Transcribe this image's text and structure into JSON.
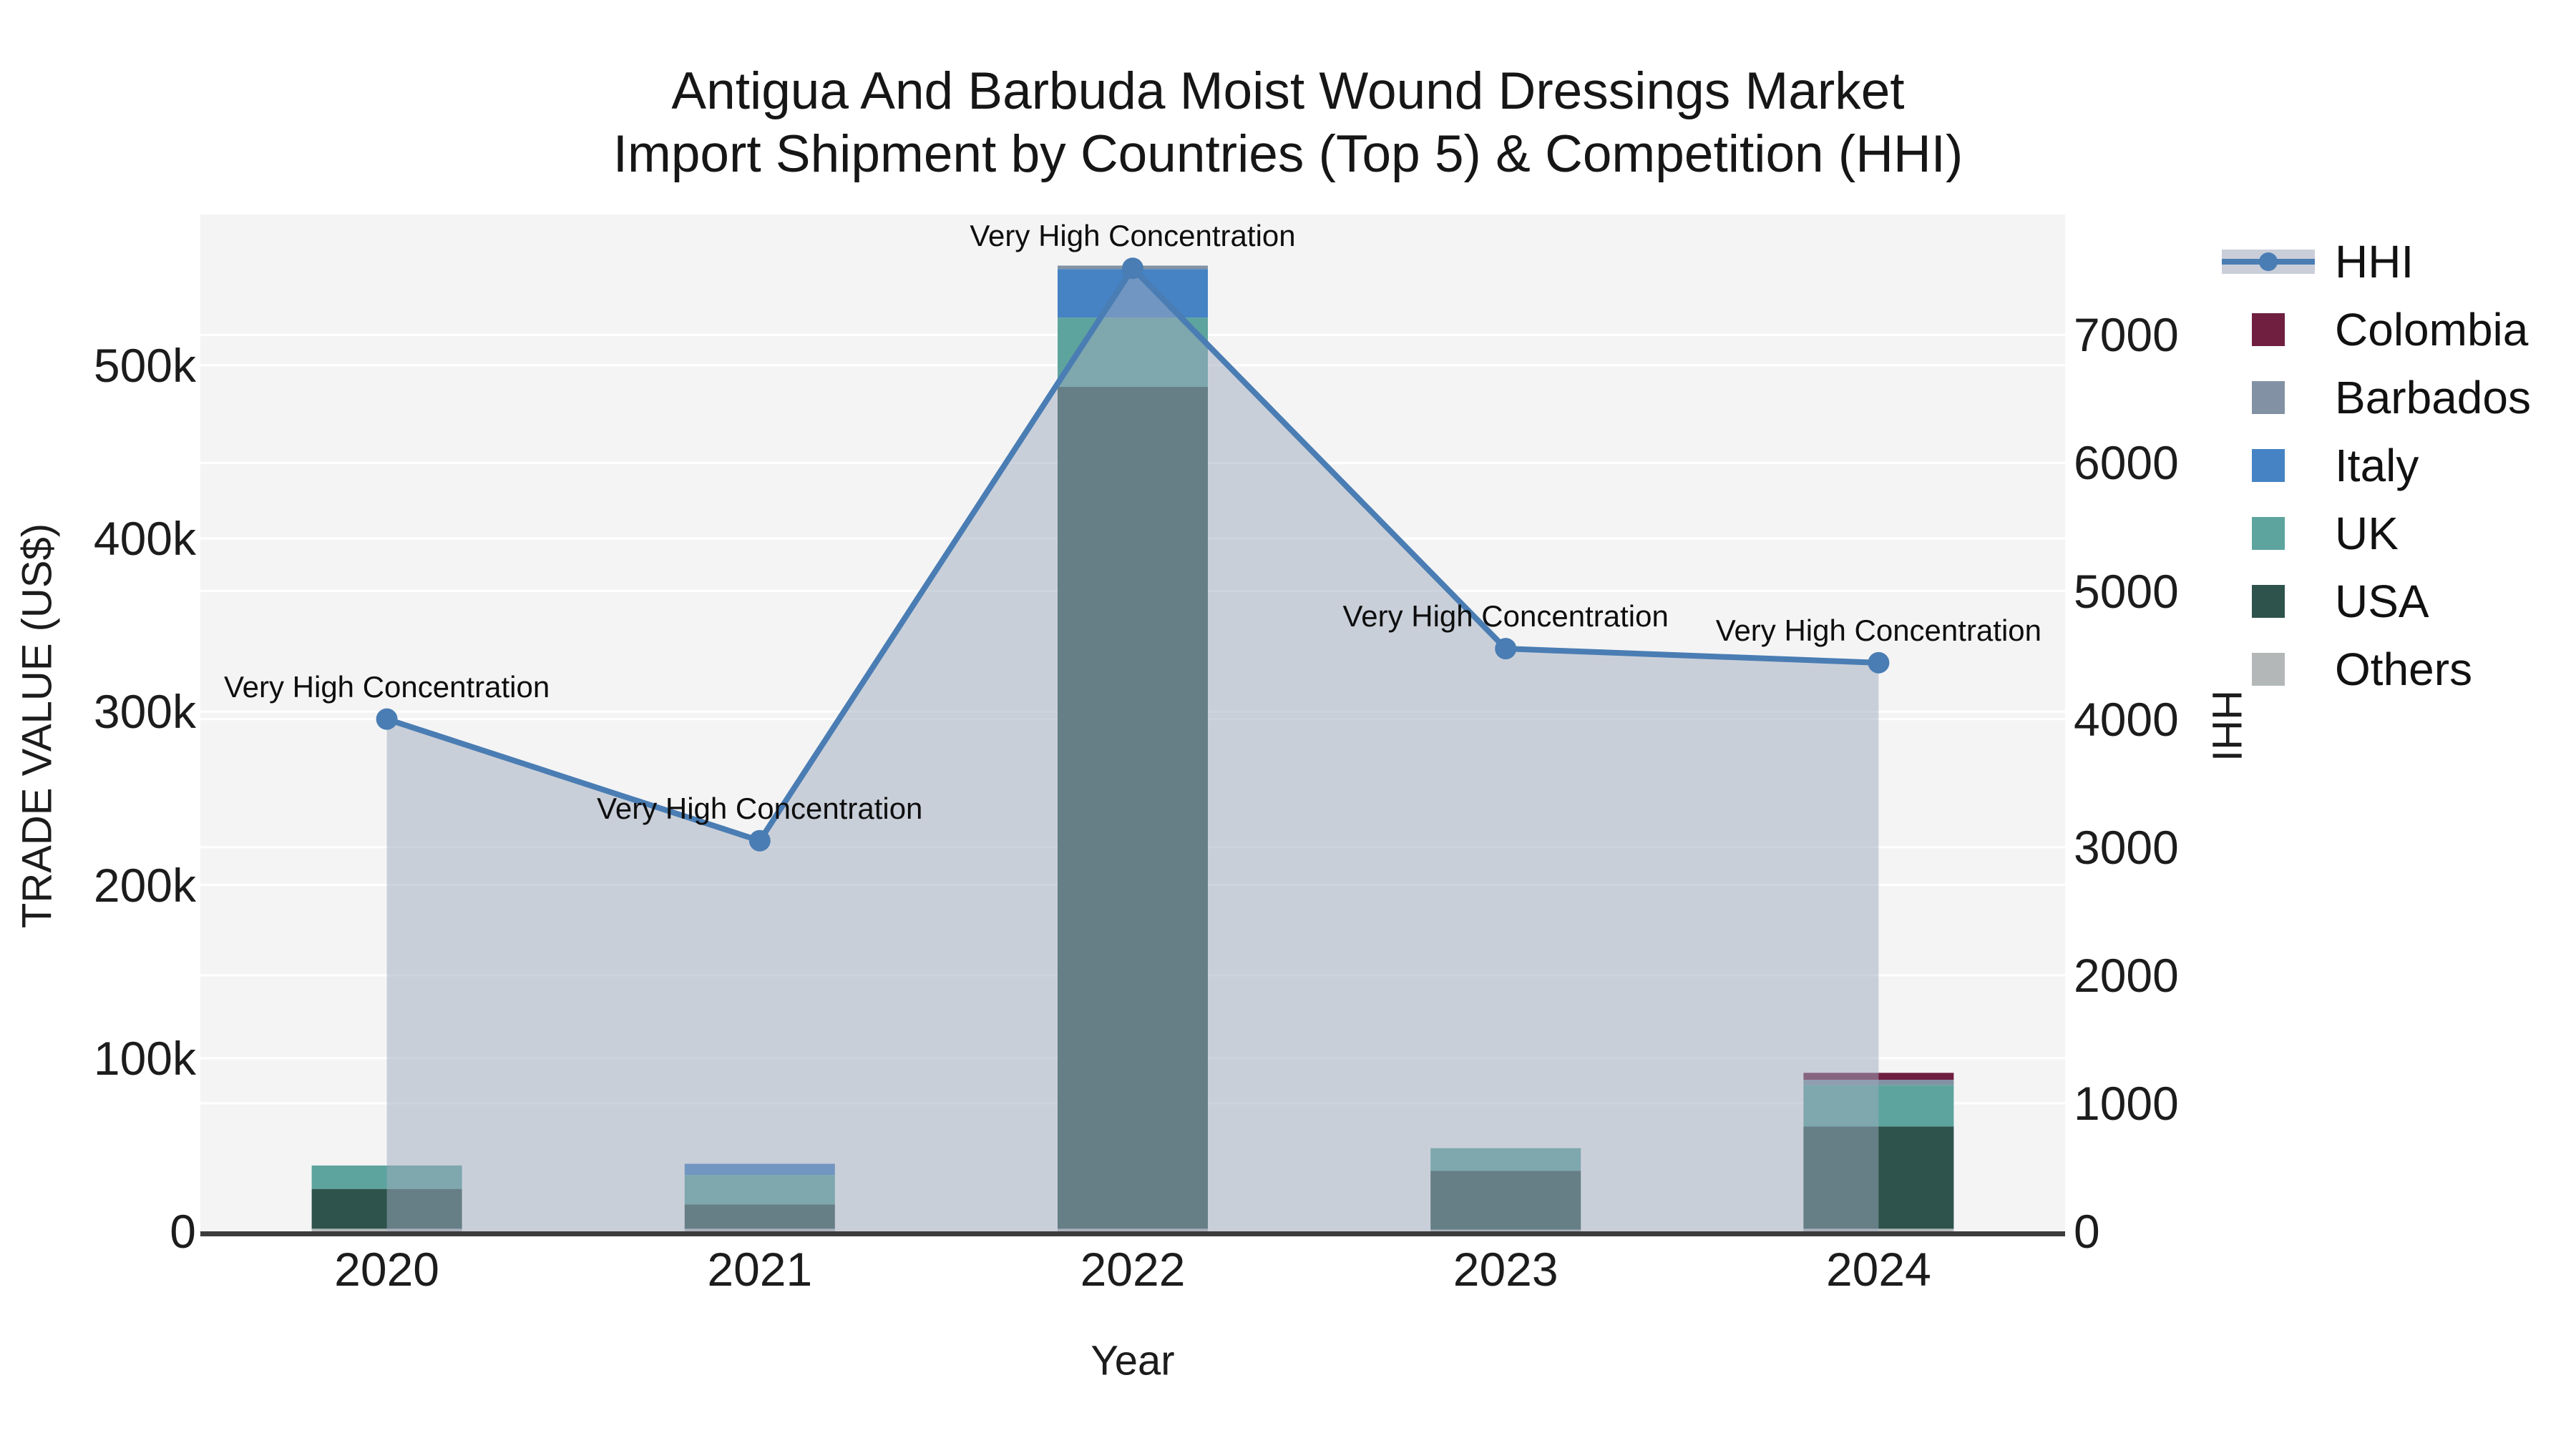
{
  "title": {
    "line1": "Antigua And Barbuda Moist Wound Dressings Market",
    "line2": "Import Shipment by Countries (Top 5) & Competition (HHI)"
  },
  "axes": {
    "x": {
      "title": "Year",
      "tick_labels": [
        "2020",
        "2021",
        "2022",
        "2023",
        "2024"
      ]
    },
    "y_left": {
      "title": "TRADE VALUE (US$)",
      "tick_labels": [
        "0",
        "100k",
        "200k",
        "300k",
        "400k",
        "500k"
      ],
      "tick_values": [
        0,
        100000,
        200000,
        300000,
        400000,
        500000
      ]
    },
    "y_right": {
      "title": "HHI",
      "tick_labels": [
        "0",
        "1000",
        "2000",
        "3000",
        "4000",
        "5000",
        "6000",
        "7000"
      ],
      "tick_values": [
        0,
        1000,
        2000,
        3000,
        4000,
        5000,
        6000,
        7000
      ]
    }
  },
  "legend": {
    "items": [
      {
        "label": "HHI",
        "type": "line",
        "color": "#4a7db3"
      },
      {
        "label": "Colombia",
        "type": "square",
        "color": "#701f40"
      },
      {
        "label": "Barbados",
        "type": "square",
        "color": "#8292a4"
      },
      {
        "label": "Italy",
        "type": "square",
        "color": "#4583c4"
      },
      {
        "label": "UK",
        "type": "square",
        "color": "#5ea49e"
      },
      {
        "label": "USA",
        "type": "square",
        "color": "#2e534c"
      },
      {
        "label": "Others",
        "type": "square",
        "color": "#b3b7b8"
      }
    ]
  },
  "annotations": [
    {
      "year": "2020",
      "text": "Very High Concentration"
    },
    {
      "year": "2021",
      "text": "Very High Concentration"
    },
    {
      "year": "2022",
      "text": "Very High Concentration"
    },
    {
      "year": "2023",
      "text": "Very High Concentration"
    },
    {
      "year": "2024",
      "text": "Very High Concentration"
    }
  ],
  "chart_data": {
    "type": "combo",
    "subtype": "stacked-bar + line-area",
    "categories": [
      "2020",
      "2021",
      "2022",
      "2023",
      "2024"
    ],
    "bar_unit": "US$",
    "bar_series": [
      {
        "name": "Others",
        "color": "#b3b7b8",
        "values": [
          1500,
          1500,
          1500,
          1000,
          1500
        ]
      },
      {
        "name": "USA",
        "color": "#2e534c",
        "values": [
          23000,
          14000,
          486000,
          34000,
          59000
        ]
      },
      {
        "name": "UK",
        "color": "#5ea49e",
        "values": [
          13500,
          17000,
          40000,
          13000,
          24000
        ]
      },
      {
        "name": "Italy",
        "color": "#4583c4",
        "values": [
          0,
          6500,
          28000,
          0,
          0
        ]
      },
      {
        "name": "Barbados",
        "color": "#8292a4",
        "values": [
          0,
          0,
          2000,
          0,
          3000
        ]
      },
      {
        "name": "Colombia",
        "color": "#701f40",
        "values": [
          0,
          0,
          0,
          0,
          4000
        ]
      }
    ],
    "line_series": {
      "name": "HHI",
      "color": "#4a7db3",
      "fill_color": "rgba(157,169,189,0.5)",
      "values": [
        4000,
        3050,
        7520,
        4550,
        4440
      ]
    },
    "y_left_range": [
      0,
      587000
    ],
    "y_right_range": [
      0,
      7940
    ],
    "grid": true,
    "plot_bg": "#f4f4f5",
    "grid_color": "#ffffff",
    "axis_line_color": "#3c3c3c",
    "legend_position": "right"
  }
}
